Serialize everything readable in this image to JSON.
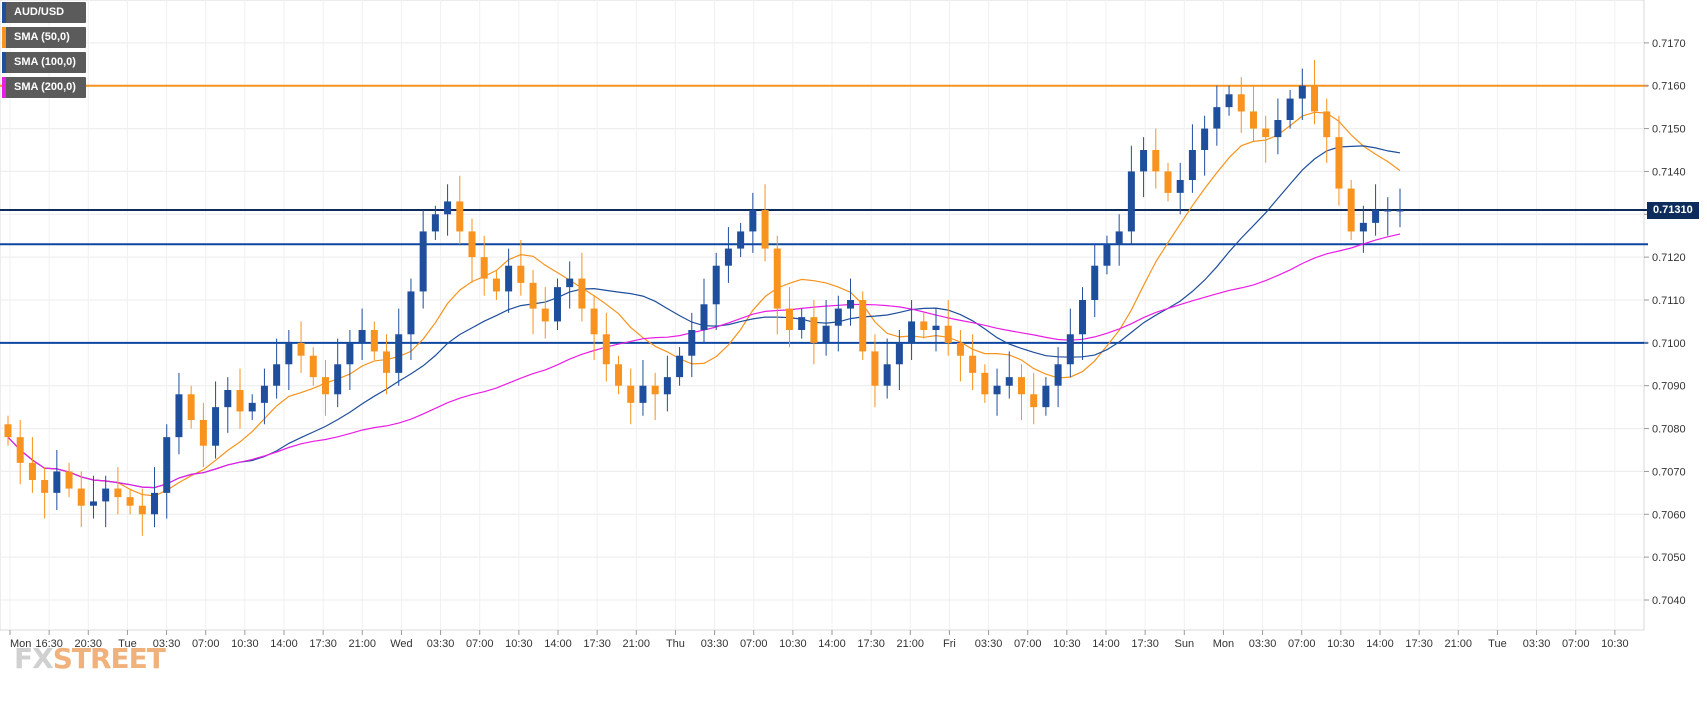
{
  "legend": [
    {
      "label": "AUD/USD",
      "color": "#1f4e9c"
    },
    {
      "label": "SMA (50,0)",
      "color": "#f7931e"
    },
    {
      "label": "SMA (100,0)",
      "color": "#1f4e9c"
    },
    {
      "label": "SMA (200,0)",
      "color": "#e91ee6"
    }
  ],
  "current_price_label": "0.71310",
  "logo": {
    "fx": "FX",
    "street": "STREET"
  },
  "chart_data": {
    "type": "candlestick",
    "symbol": "AUD/USD",
    "ylim": [
      0.7033,
      0.718
    ],
    "y_ticks": [
      "0.7040",
      "0.7050",
      "0.7060",
      "0.7070",
      "0.7080",
      "0.7090",
      "0.7100",
      "0.7110",
      "0.7120",
      "0.7130",
      "0.7140",
      "0.7150",
      "0.7160",
      "0.7170"
    ],
    "x_ticks": [
      "Mon",
      "16:30",
      "20:30",
      "Tue",
      "03:30",
      "07:00",
      "10:30",
      "14:00",
      "17:30",
      "21:00",
      "Wed",
      "03:30",
      "07:00",
      "10:30",
      "14:00",
      "17:30",
      "21:00",
      "Thu",
      "03:30",
      "07:00",
      "10:30",
      "14:00",
      "17:30",
      "21:00",
      "Fri",
      "03:30",
      "07:00",
      "10:30",
      "14:00",
      "17:30",
      "Sun",
      "Mon",
      "03:30",
      "07:00",
      "10:30",
      "14:00",
      "17:30",
      "21:00",
      "Tue",
      "03:30",
      "07:00",
      "10:30"
    ],
    "horizontal_levels": [
      {
        "value": 0.716,
        "color": "#f7931e"
      },
      {
        "value": 0.7131,
        "color": "#0d2c5c"
      },
      {
        "value": 0.7123,
        "color": "#0d47a1"
      },
      {
        "value": 0.71,
        "color": "#0d47a1"
      }
    ],
    "candle_colors": {
      "up": "#1f4e9c",
      "down": "#f7931e"
    },
    "closes": [
      0.7078,
      0.7072,
      0.7068,
      0.7065,
      0.707,
      0.7066,
      0.7062,
      0.7063,
      0.7066,
      0.7064,
      0.7062,
      0.706,
      0.7065,
      0.7078,
      0.7088,
      0.7082,
      0.7076,
      0.7085,
      0.7089,
      0.7084,
      0.7086,
      0.709,
      0.7095,
      0.71,
      0.7097,
      0.7092,
      0.7088,
      0.7095,
      0.71,
      0.7103,
      0.7098,
      0.7093,
      0.7102,
      0.7112,
      0.7126,
      0.713,
      0.7133,
      0.7126,
      0.712,
      0.7115,
      0.7112,
      0.7118,
      0.7114,
      0.7108,
      0.7105,
      0.7113,
      0.7115,
      0.7108,
      0.7102,
      0.7095,
      0.709,
      0.7086,
      0.709,
      0.7088,
      0.7092,
      0.7097,
      0.7103,
      0.7109,
      0.7118,
      0.7122,
      0.7126,
      0.7131,
      0.7122,
      0.7108,
      0.7103,
      0.7106,
      0.71,
      0.7104,
      0.7108,
      0.711,
      0.7098,
      0.709,
      0.7095,
      0.71,
      0.7105,
      0.7103,
      0.7104,
      0.71,
      0.7097,
      0.7093,
      0.7088,
      0.709,
      0.7092,
      0.7088,
      0.7085,
      0.709,
      0.7095,
      0.7102,
      0.711,
      0.7118,
      0.7123,
      0.7126,
      0.714,
      0.7145,
      0.714,
      0.7135,
      0.7138,
      0.7145,
      0.715,
      0.7155,
      0.7158,
      0.7154,
      0.715,
      0.7148,
      0.7152,
      0.7157,
      0.716,
      0.7154,
      0.7148,
      0.7136,
      0.7126,
      0.7128,
      0.7131,
      0.7131,
      0.7131
    ]
  }
}
